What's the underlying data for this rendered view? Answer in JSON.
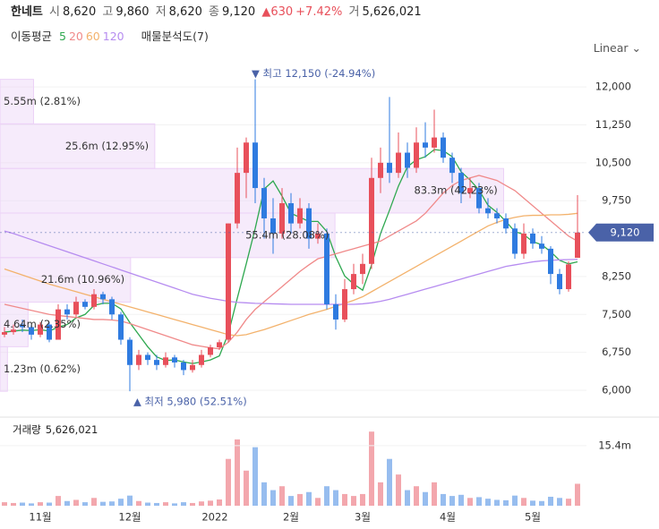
{
  "header": {
    "name": "한네트",
    "open_label": "시",
    "open": "8,620",
    "high_label": "고",
    "high": "9,860",
    "low_label": "저",
    "low": "8,620",
    "close_label": "종",
    "close": "9,120",
    "change": "▲630",
    "change_pct": "+7.42%",
    "volume_label": "거",
    "volume": "5,626,021"
  },
  "indicators": {
    "ma_title": "이동평균",
    "profile_title": "매물분석도(7)",
    "scale": "Linear"
  },
  "chart_data": {
    "type": "candlestick",
    "open": [
      7100,
      7150,
      7300,
      7250,
      7100,
      7300,
      7000,
      7600,
      7500,
      7750,
      7650,
      7900,
      7800,
      7500,
      7000,
      6500,
      6700,
      6600,
      6500,
      6650,
      6550,
      6400,
      6500,
      6700,
      6850,
      7000,
      9300,
      10300,
      10900,
      10000,
      9400,
      9100,
      9700,
      9300,
      9600,
      9000,
      9100,
      7700,
      7400,
      8000,
      8300,
      8500,
      10200,
      10500,
      10300,
      10700,
      10400,
      10900,
      10800,
      11000,
      10600,
      10300,
      9900,
      10000,
      9600,
      9500,
      9400,
      9200,
      8700,
      9100,
      8900,
      8800,
      8300,
      8000,
      8620
    ],
    "high": [
      7250,
      7300,
      7400,
      7300,
      7350,
      7350,
      7700,
      7700,
      7850,
      7800,
      8000,
      7950,
      7850,
      7550,
      7050,
      6800,
      6750,
      6700,
      6750,
      6700,
      6600,
      6600,
      6800,
      6900,
      7000,
      9300,
      10800,
      11000,
      12150,
      10200,
      9800,
      10000,
      9900,
      9800,
      9700,
      9300,
      9200,
      7900,
      8200,
      8500,
      8700,
      10600,
      10800,
      11800,
      11100,
      10900,
      11200,
      11300,
      11550,
      11100,
      10700,
      10400,
      10200,
      10100,
      9800,
      9600,
      9500,
      9300,
      9300,
      9200,
      9050,
      8850,
      8400,
      8550,
      9860
    ],
    "low": [
      7050,
      7100,
      7150,
      7000,
      7050,
      6950,
      7000,
      7400,
      7450,
      7600,
      7600,
      7700,
      7400,
      6900,
      5980,
      6400,
      6500,
      6400,
      6450,
      6450,
      6300,
      6350,
      6450,
      6650,
      6800,
      6950,
      9200,
      9800,
      9700,
      9000,
      8700,
      9000,
      9100,
      9200,
      8800,
      8900,
      7600,
      7200,
      7350,
      7900,
      8100,
      8400,
      9900,
      10100,
      10200,
      10200,
      10300,
      10600,
      10700,
      10500,
      10100,
      9700,
      9800,
      9500,
      9400,
      9300,
      9100,
      8600,
      8600,
      8800,
      8700,
      8100,
      7900,
      7950,
      8620
    ],
    "close": [
      7150,
      7200,
      7250,
      7100,
      7300,
      7000,
      7600,
      7500,
      7750,
      7650,
      7900,
      7800,
      7500,
      7000,
      6500,
      6700,
      6600,
      6500,
      6650,
      6550,
      6400,
      6500,
      6700,
      6850,
      6950,
      9300,
      10300,
      10900,
      10000,
      9400,
      9100,
      9700,
      9300,
      9600,
      9000,
      9100,
      7700,
      7400,
      8000,
      8300,
      8500,
      10200,
      10500,
      10300,
      10700,
      10400,
      10900,
      10800,
      11000,
      10600,
      10300,
      9900,
      10000,
      9600,
      9500,
      9400,
      9200,
      8700,
      9100,
      8900,
      8800,
      8300,
      8000,
      8490,
      9120
    ],
    "up_color": "#e8505b",
    "down_color": "#2f7be0",
    "xlim": [
      -0.5,
      65
    ],
    "xticks": [
      {
        "value": 4,
        "label": "11월"
      },
      {
        "value": 14,
        "label": "12월"
      },
      {
        "value": 23.5,
        "label": "2022"
      },
      {
        "value": 32,
        "label": "2월"
      },
      {
        "value": 40,
        "label": "3월"
      },
      {
        "value": 49.5,
        "label": "4월"
      },
      {
        "value": 59,
        "label": "5월"
      }
    ],
    "ylim": [
      5540,
      12480
    ],
    "yticks": [
      {
        "value": 6000,
        "label": "6,000"
      },
      {
        "value": 6750,
        "label": "6,750"
      },
      {
        "value": 7500,
        "label": "7,500"
      },
      {
        "value": 8250,
        "label": "8,250"
      },
      {
        "value": 9750,
        "label": "9,750"
      },
      {
        "value": 10500,
        "label": "10,500"
      },
      {
        "value": 11250,
        "label": "11,250"
      },
      {
        "value": 12000,
        "label": "12,000"
      }
    ],
    "grid": true,
    "current_price": {
      "value": 9120,
      "label": "9,120"
    },
    "high_note": "▼ 최고 12,150 (-24.94%)",
    "low_note": "▲ 최저 5,980 (52.51%)",
    "series": [
      {
        "name": "5",
        "color": "#2ea84f",
        "values": [
          7150,
          7170,
          7190,
          7180,
          7200,
          7170,
          7250,
          7300,
          7430,
          7500,
          7680,
          7720,
          7720,
          7610,
          7340,
          7100,
          6860,
          6660,
          6590,
          6600,
          6560,
          6530,
          6560,
          6600,
          6680,
          7120,
          7820,
          8500,
          9200,
          9980,
          10140,
          9840,
          9500,
          9420,
          9340,
          9340,
          9140,
          8640,
          8260,
          8100,
          7980,
          8480,
          9100,
          9560,
          10040,
          10420,
          10560,
          10620,
          10760,
          10740,
          10620,
          10320,
          10160,
          9960,
          9660,
          9520,
          9340,
          9140,
          9080,
          8940,
          8880,
          8740,
          8570,
          8500,
          8540
        ]
      },
      {
        "name": "20",
        "color": "#f08a8a",
        "values": [
          7700,
          7660,
          7620,
          7580,
          7540,
          7500,
          7480,
          7460,
          7440,
          7420,
          7400,
          7400,
          7390,
          7370,
          7320,
          7260,
          7200,
          7140,
          7080,
          7020,
          6960,
          6900,
          6870,
          6840,
          6820,
          6950,
          7150,
          7400,
          7600,
          7750,
          7900,
          8050,
          8200,
          8350,
          8480,
          8600,
          8650,
          8700,
          8750,
          8800,
          8850,
          8900,
          8950,
          9050,
          9150,
          9250,
          9350,
          9500,
          9700,
          9900,
          10050,
          10150,
          10200,
          10250,
          10200,
          10150,
          10050,
          9950,
          9800,
          9650,
          9500,
          9350,
          9200,
          9050,
          8950
        ]
      },
      {
        "name": "60",
        "color": "#f3b26c",
        "values": [
          8400,
          8340,
          8280,
          8220,
          8160,
          8100,
          8050,
          8000,
          7950,
          7900,
          7850,
          7800,
          7750,
          7700,
          7650,
          7600,
          7550,
          7500,
          7450,
          7400,
          7350,
          7300,
          7250,
          7200,
          7150,
          7100,
          7080,
          7100,
          7150,
          7200,
          7260,
          7320,
          7380,
          7440,
          7500,
          7550,
          7600,
          7660,
          7720,
          7780,
          7850,
          7950,
          8050,
          8150,
          8250,
          8350,
          8450,
          8550,
          8650,
          8750,
          8850,
          8950,
          9050,
          9150,
          9250,
          9320,
          9380,
          9420,
          9450,
          9460,
          9460,
          9470,
          9470,
          9480,
          9500
        ]
      },
      {
        "name": "120",
        "color": "#b68cf0",
        "values": [
          9150,
          9100,
          9040,
          8980,
          8920,
          8860,
          8800,
          8740,
          8680,
          8620,
          8560,
          8500,
          8440,
          8380,
          8320,
          8260,
          8200,
          8140,
          8080,
          8020,
          7960,
          7900,
          7860,
          7820,
          7790,
          7760,
          7740,
          7730,
          7720,
          7715,
          7710,
          7705,
          7700,
          7700,
          7700,
          7700,
          7700,
          7700,
          7700,
          7700,
          7710,
          7730,
          7760,
          7800,
          7850,
          7900,
          7950,
          8000,
          8050,
          8100,
          8150,
          8200,
          8250,
          8300,
          8350,
          8400,
          8450,
          8480,
          8510,
          8540,
          8560,
          8570,
          8580,
          8585,
          8590
        ]
      }
    ],
    "profile": {
      "bins": [
        5980,
        6861,
        7743,
        8624,
        9506,
        10387,
        11269,
        12150
      ],
      "values": [
        1230000,
        4640000,
        21600000,
        55400000,
        83300000,
        25600000,
        5550000
      ],
      "value_labels": [
        "1.23m (0.62%)",
        "4.64m (2.35%)",
        "21.6m (10.96%)",
        "55.4m (28.08%)",
        "83.3m (42.23%)",
        "25.6m (12.95%)",
        "5.55m (2.81%)"
      ],
      "xlim": [
        0,
        97000000
      ],
      "color": "#ecd2f7"
    },
    "volume": {
      "title": "거래량",
      "label": "5,626,021",
      "values": [
        900000,
        700000,
        800000,
        600000,
        900000,
        800000,
        2500000,
        1200000,
        1500000,
        900000,
        2000000,
        1000000,
        1100000,
        1800000,
        2600000,
        1200000,
        800000,
        700000,
        900000,
        600000,
        900000,
        700000,
        1100000,
        1300000,
        1600000,
        12000000,
        17000000,
        9000000,
        15000000,
        6000000,
        4000000,
        5000000,
        2500000,
        3000000,
        3500000,
        2000000,
        5000000,
        4000000,
        3000000,
        2500000,
        3000000,
        19000000,
        6000000,
        12000000,
        8000000,
        4000000,
        5000000,
        3500000,
        6000000,
        3000000,
        2500000,
        2800000,
        2000000,
        2200000,
        1800000,
        1500000,
        1400000,
        2600000,
        2000000,
        1300000,
        1200000,
        2300000,
        2000000,
        1800000,
        5626021
      ],
      "ylim": [
        0,
        21800000
      ],
      "yticks": [
        {
          "value": 15400000,
          "label": "15.4m"
        }
      ]
    }
  }
}
